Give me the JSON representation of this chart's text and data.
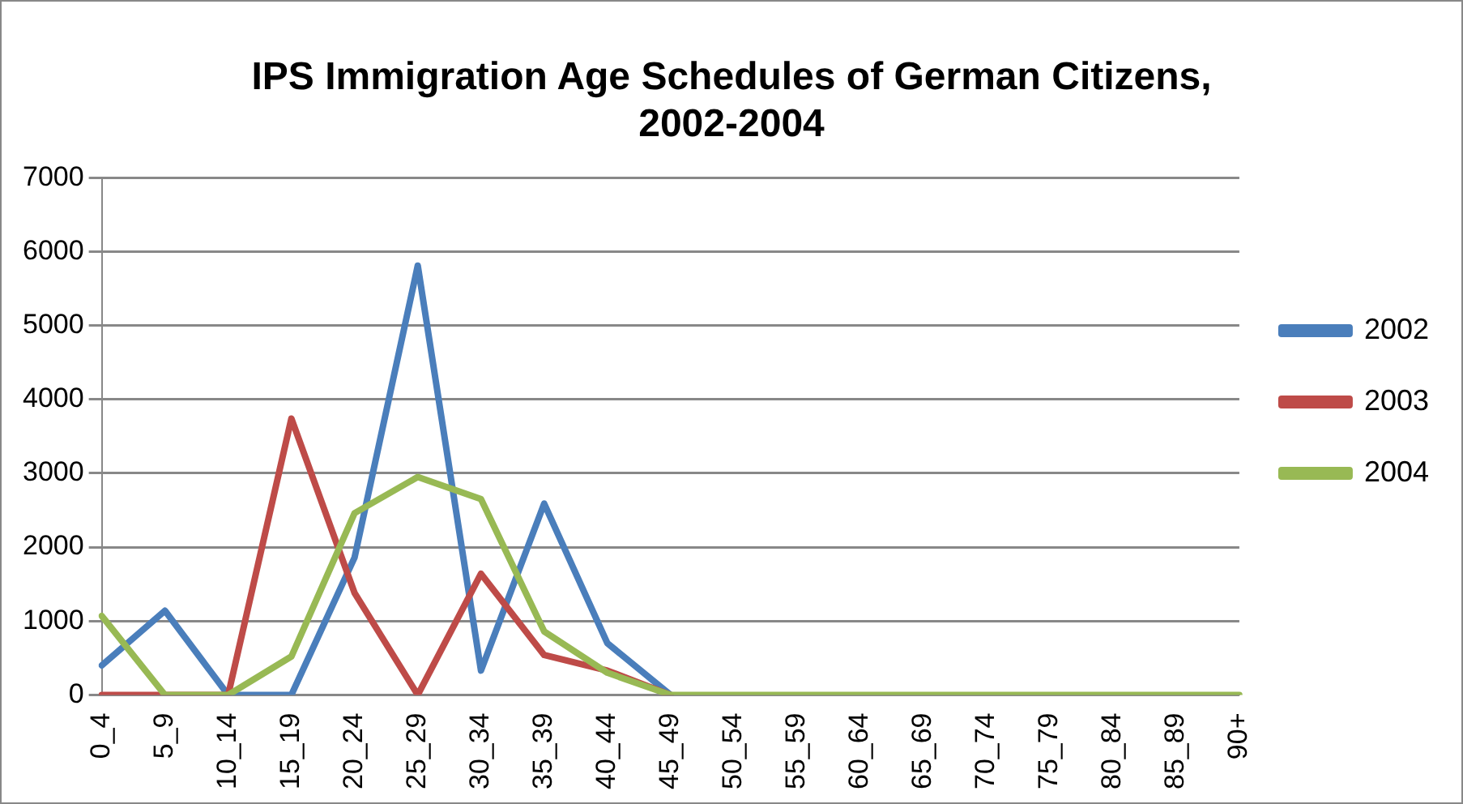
{
  "chart_data": {
    "type": "line",
    "title": "IPS Immigration Age Schedules of German Citizens, 2002-2004",
    "categories": [
      "0_4",
      "5_9",
      "10_14",
      "15_19",
      "20_24",
      "25_29",
      "30_34",
      "35_39",
      "40_44",
      "45_49",
      "50_54",
      "55_59",
      "60_64",
      "65_69",
      "70_74",
      "75_79",
      "80_84",
      "85_89",
      "90+"
    ],
    "series": [
      {
        "name": "2002",
        "color": "#4a7ebb",
        "values": [
          400,
          1140,
          0,
          0,
          1860,
          5810,
          330,
          2590,
          700,
          0,
          null,
          null,
          null,
          null,
          null,
          null,
          null,
          null,
          null
        ]
      },
      {
        "name": "2003",
        "color": "#be4b48",
        "values": [
          0,
          0,
          0,
          3740,
          1380,
          0,
          1640,
          540,
          330,
          0,
          null,
          null,
          null,
          null,
          null,
          null,
          null,
          null,
          null
        ]
      },
      {
        "name": "2004",
        "color": "#98b954",
        "values": [
          1070,
          0,
          0,
          520,
          2460,
          2950,
          2650,
          860,
          300,
          0,
          0,
          0,
          0,
          0,
          0,
          0,
          0,
          0,
          0
        ]
      }
    ],
    "ylim": [
      0,
      7000
    ],
    "yticks": [
      0,
      1000,
      2000,
      3000,
      4000,
      5000,
      6000,
      7000
    ],
    "grid": "y",
    "legend": "right",
    "marker": "none",
    "line_style": "solid"
  }
}
